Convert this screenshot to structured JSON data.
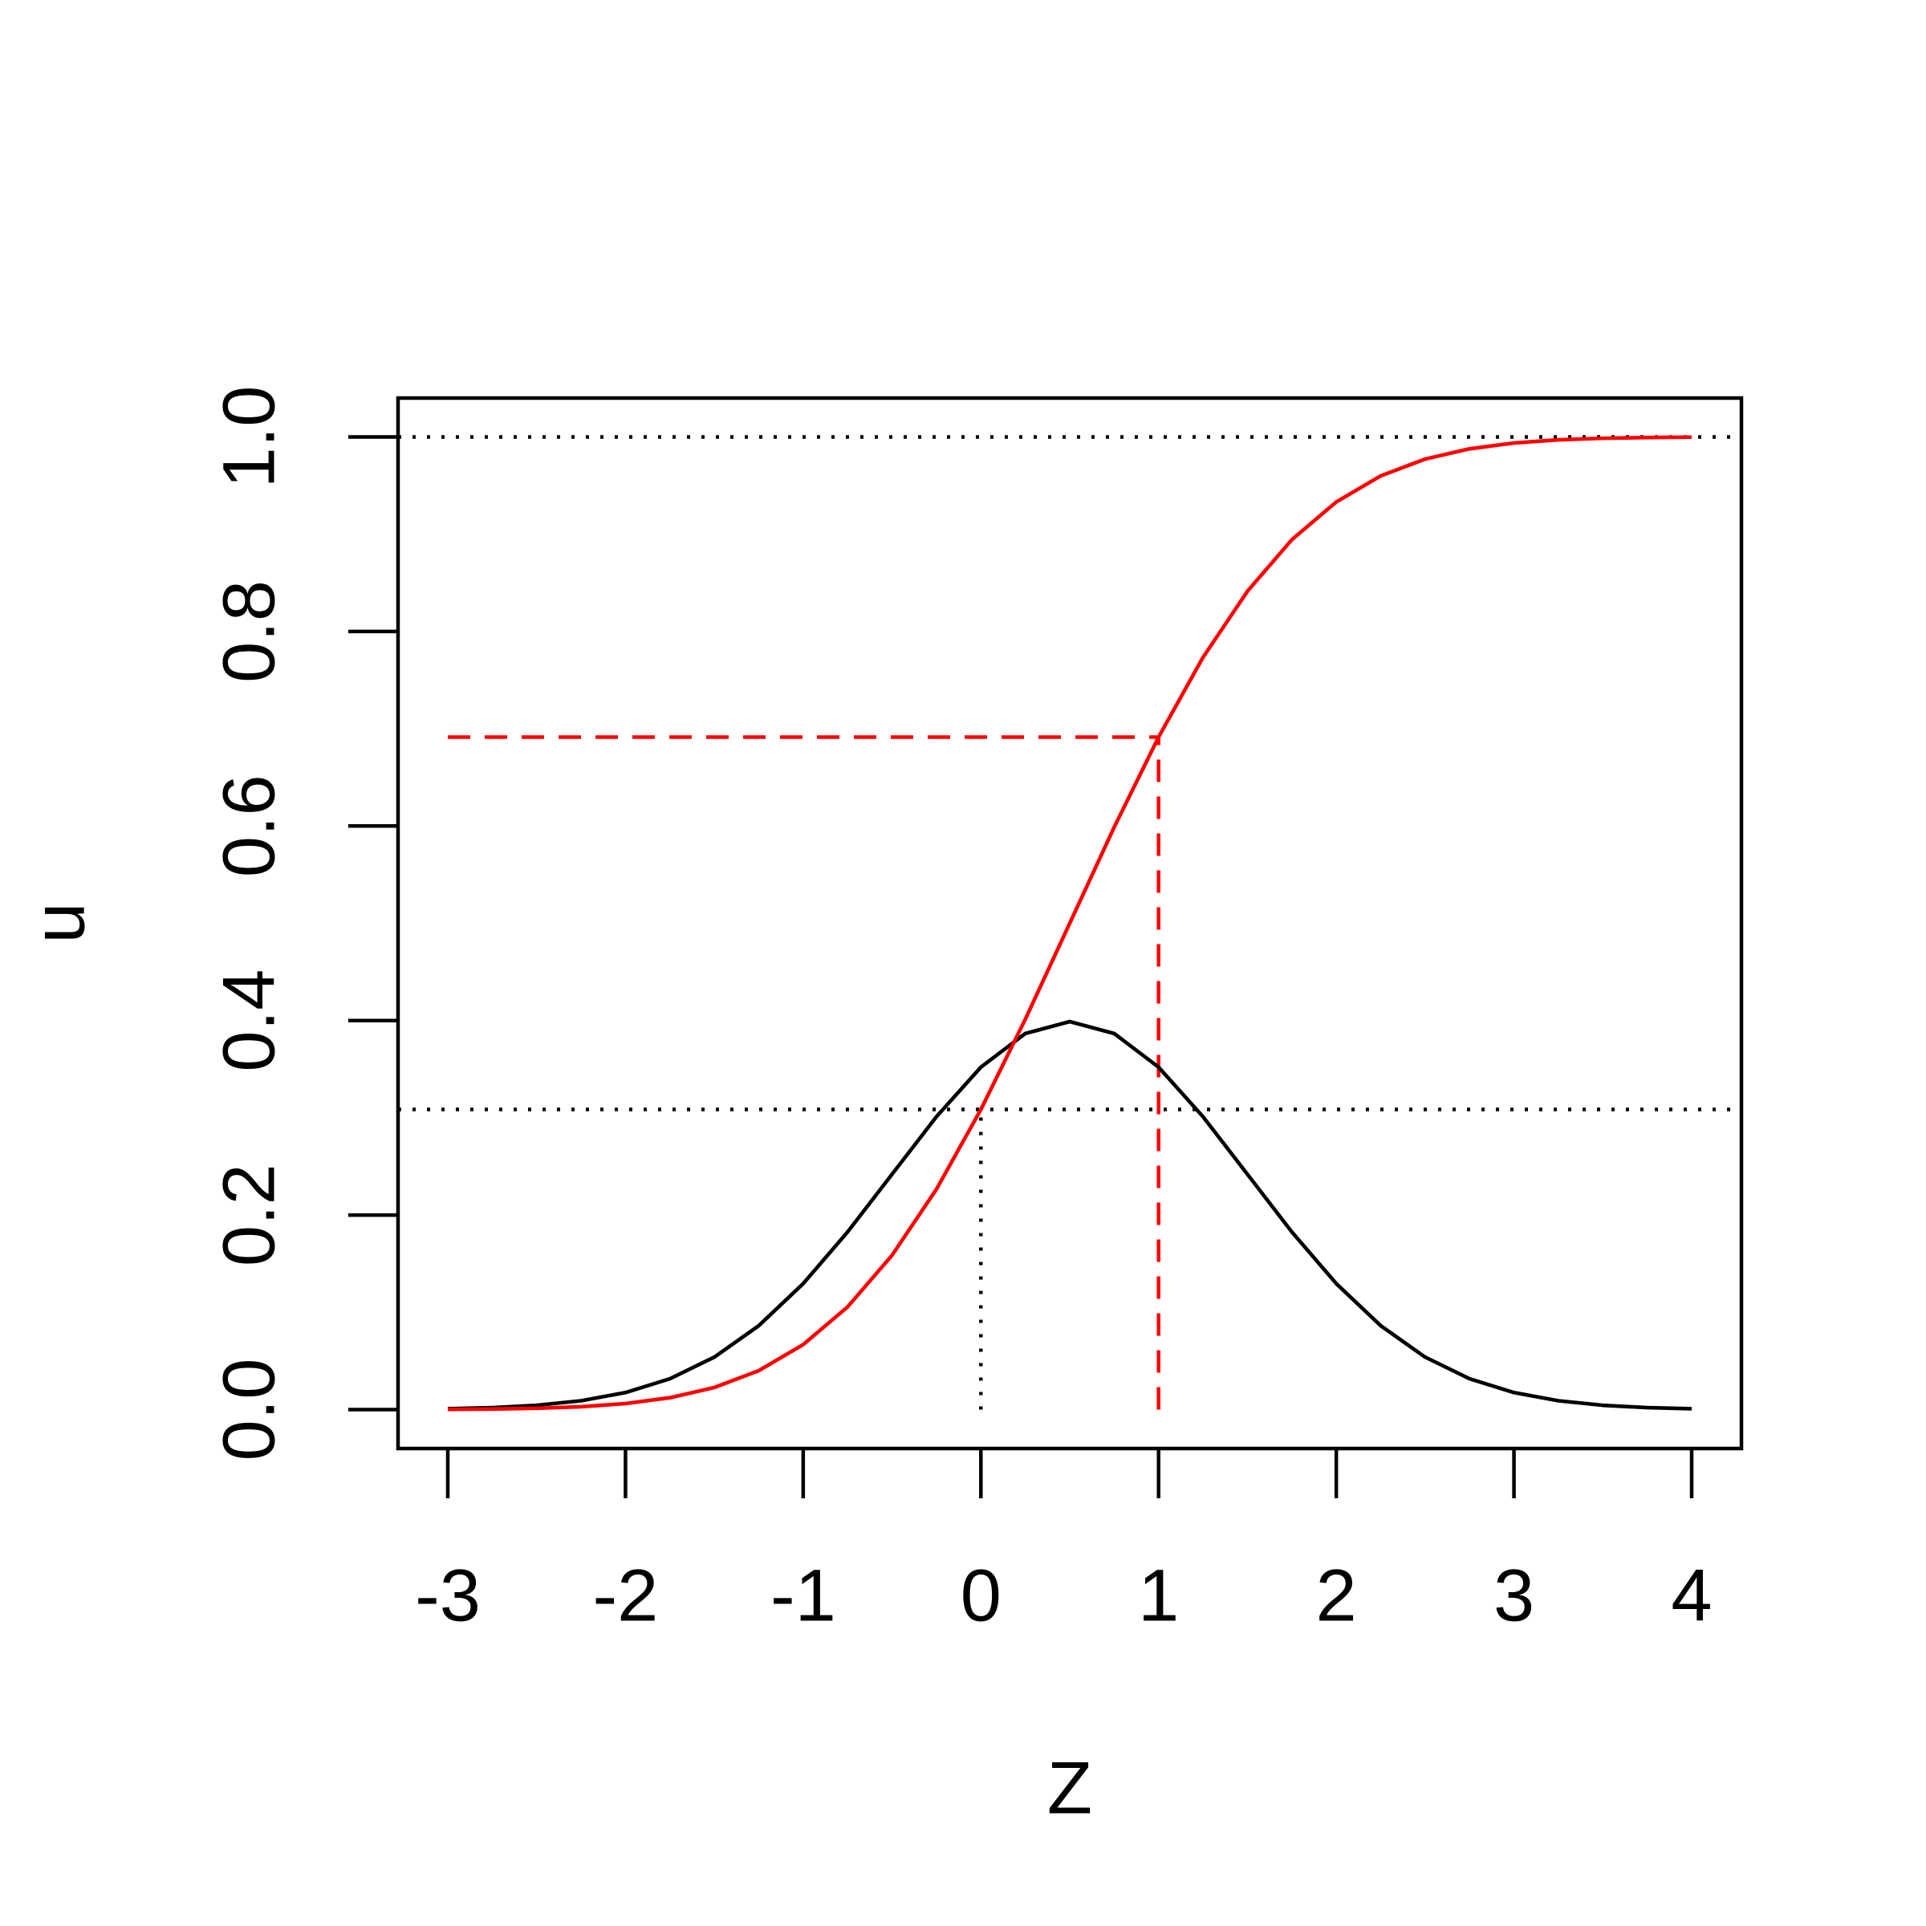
{
  "chart_data": {
    "type": "line",
    "x_label": "Z",
    "y_label": "u",
    "x": [
      -3,
      -2.75,
      -2.5,
      -2.25,
      -2,
      -1.75,
      -1.5,
      -1.25,
      -1,
      -0.75,
      -0.5,
      -0.25,
      0,
      0.25,
      0.5,
      0.75,
      1,
      1.25,
      1.5,
      1.75,
      2,
      2.25,
      2.5,
      2.75,
      3,
      3.25,
      3.5,
      3.75,
      4
    ],
    "series": [
      {
        "color": "#000000",
        "values": [
          0.00087,
          0.00203,
          0.00443,
          0.00909,
          0.01753,
          0.03174,
          0.05399,
          0.08628,
          0.12952,
          0.18265,
          0.24197,
          0.30114,
          0.35207,
          0.38667,
          0.39894,
          0.38667,
          0.35207,
          0.30114,
          0.24197,
          0.18265,
          0.12952,
          0.08628,
          0.05399,
          0.03174,
          0.01753,
          0.00909,
          0.00443,
          0.00203,
          0.00087
        ]
      },
      {
        "color": "#ff0000",
        "values": [
          0.00023,
          0.00058,
          0.00135,
          0.00298,
          0.00621,
          0.01222,
          0.02275,
          0.04006,
          0.06681,
          0.10565,
          0.15866,
          0.22663,
          0.30854,
          0.40129,
          0.5,
          0.59871,
          0.69146,
          0.77337,
          0.84134,
          0.89435,
          0.93319,
          0.95994,
          0.97725,
          0.98778,
          0.99379,
          0.99702,
          0.99865,
          0.99942,
          0.99977
        ]
      }
    ],
    "h_lines": [
      {
        "y": 1,
        "color": "#000000",
        "style": "dotted"
      },
      {
        "y": 0.30854,
        "color": "#000000",
        "style": "dotted"
      }
    ],
    "segments": [
      {
        "x": [
          0,
          0
        ],
        "y": [
          0,
          0.30854
        ],
        "color": "#000000",
        "style": "dotted"
      },
      {
        "x": [
          -3,
          1
        ],
        "y": [
          0.69146,
          0.69146
        ],
        "color": "#ff0000",
        "style": "dashed"
      },
      {
        "x": [
          1,
          1
        ],
        "y": [
          0,
          0.69146
        ],
        "color": "#ff0000",
        "style": "dashed"
      }
    ],
    "xlim": [
      -3.28,
      4.28
    ],
    "ylim": [
      -0.04,
      1.04
    ],
    "xticks": [
      -3,
      -2,
      -1,
      0,
      1,
      2,
      3,
      4
    ],
    "yticks": [
      {
        "value": 0,
        "label": "0.0"
      },
      {
        "value": 0.2,
        "label": "0.2"
      },
      {
        "value": 0.4,
        "label": "0.4"
      },
      {
        "value": 0.6,
        "label": "0.6"
      },
      {
        "value": 0.8,
        "label": "0.8"
      },
      {
        "value": 1,
        "label": "1.0"
      }
    ]
  }
}
